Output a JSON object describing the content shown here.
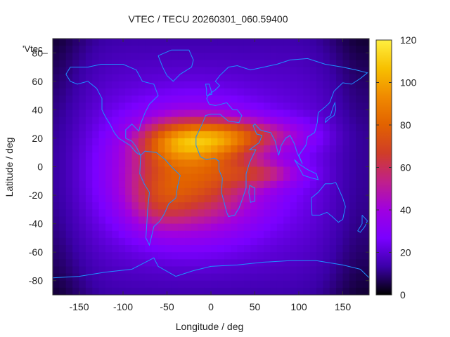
{
  "chart_data": {
    "type": "heatmap",
    "title": "VTEC / TECU 20260301_060.59400",
    "xlabel": "Longitude / deg",
    "ylabel": "Latitude / deg",
    "series_key": "'Vtec_",
    "xlim": [
      -180,
      180
    ],
    "ylim": [
      -90,
      90
    ],
    "x_ticks": [
      -150,
      -100,
      -50,
      0,
      50,
      100,
      150
    ],
    "y_ticks": [
      -80,
      -60,
      -40,
      -20,
      0,
      20,
      40,
      60,
      80
    ],
    "colorbar": {
      "range": [
        0,
        120
      ],
      "ticks": [
        0,
        20,
        40,
        60,
        80,
        100,
        120
      ]
    },
    "grid": false,
    "colormap": [
      "#000000",
      "#3b00a8",
      "#7a00ff",
      "#a000e0",
      "#c0208a",
      "#d03d28",
      "#e26200",
      "#f08a00",
      "#f7c000",
      "#ffef40"
    ],
    "coastline_color": "#1e90ff",
    "heat_sources": [
      {
        "lon": -20,
        "lat": -5,
        "value": 55,
        "sigma_lon": 55,
        "sigma_lat": 28
      },
      {
        "lon": -40,
        "lat": 18,
        "value": 35,
        "sigma_lon": 30,
        "sigma_lat": 10
      },
      {
        "lon": 10,
        "lat": 20,
        "value": 30,
        "sigma_lon": 30,
        "sigma_lat": 9
      },
      {
        "lon": 60,
        "lat": 22,
        "value": 22,
        "sigma_lon": 40,
        "sigma_lat": 8
      },
      {
        "lon": 60,
        "lat": -5,
        "value": 20,
        "sigma_lon": 30,
        "sigma_lat": 6
      },
      {
        "lon": -60,
        "lat": -25,
        "value": 15,
        "sigma_lon": 25,
        "sigma_lat": 15
      }
    ],
    "background_value": 22
  }
}
